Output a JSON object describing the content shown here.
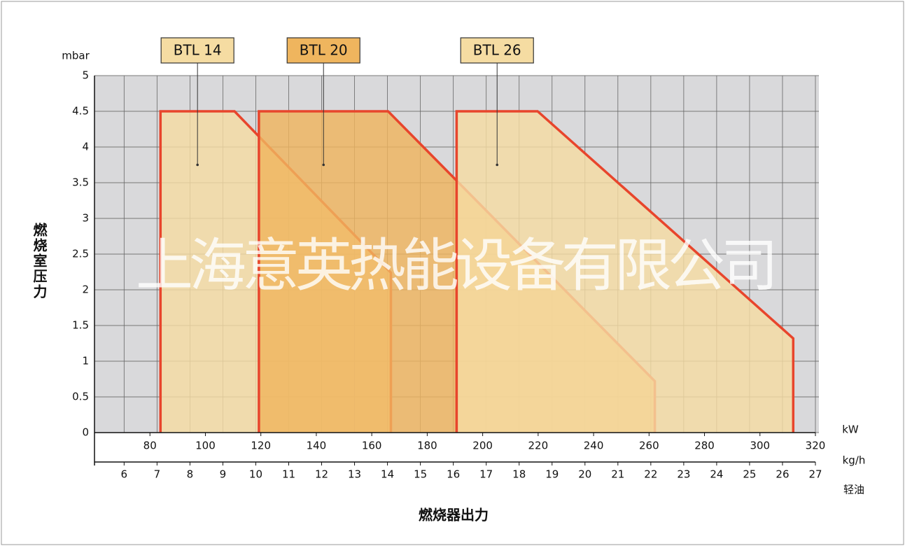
{
  "chart_data": {
    "type": "area",
    "y_label": "燃烧室压力",
    "y_unit": "mbar",
    "x_label": "燃烧器出力",
    "x_unit": "kW",
    "x2_unit": "kg/h",
    "x2_note": "轻油",
    "watermark": "上海意英热能设备有限公司",
    "xlim": [
      60,
      320
    ],
    "xticks": [
      80,
      100,
      120,
      140,
      160,
      180,
      200,
      220,
      240,
      260,
      280,
      300,
      320
    ],
    "x2lim": [
      5.1,
      27
    ],
    "x2ticks": [
      6,
      7,
      8,
      9,
      10,
      11,
      12,
      13,
      14,
      15,
      16,
      17,
      18,
      19,
      20,
      21,
      22,
      23,
      24,
      25,
      26,
      27
    ],
    "ylim": [
      0,
      5
    ],
    "yticks": [
      0,
      0.5,
      1,
      1.5,
      2,
      2.5,
      3,
      3.5,
      4,
      4.5,
      5
    ],
    "grid": true,
    "edge_color": "#e8452c",
    "series": [
      {
        "name": "BTL 14",
        "color": "#f5dca2",
        "x": [
          83.8,
          83.8,
          110.5,
          166.9,
          166.9
        ],
        "values": [
          0,
          4.5,
          4.5,
          2.24,
          0
        ]
      },
      {
        "name": "BTL 20",
        "color": "#efb55e",
        "x": [
          119.3,
          119.3,
          165.9,
          262.1,
          262.1
        ],
        "values": [
          0,
          4.5,
          4.5,
          0.72,
          0
        ]
      },
      {
        "name": "BTL 26",
        "color": "#f5dca2",
        "x": [
          190.6,
          190.6,
          219.8,
          312,
          312
        ],
        "values": [
          0,
          4.5,
          4.5,
          1.32,
          0
        ]
      }
    ]
  }
}
